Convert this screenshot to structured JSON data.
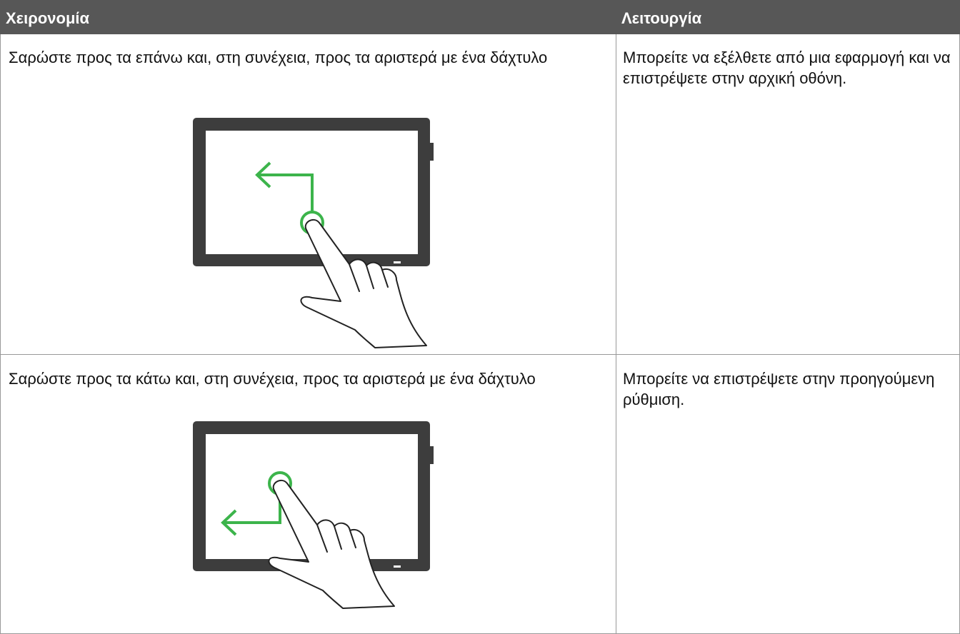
{
  "header": {
    "cells": [
      "Χειρονομία",
      "Λειτουργία"
    ]
  },
  "table": {
    "rows": [
      [
        "Σαρώστε προς τα επάνω και, στη συνέχεια, προς τα αριστερά με ένα δάχτυλο",
        "Μπορείτε να εξέλθετε από μια εφαρμογή και να επιστρέψετε στην αρχική οθόνη."
      ],
      [
        "Σαρώστε προς τα κάτω και, στη συνέχεια, προς τα αριστερά με ένα δάχτυλο",
        "Μπορείτε να επιστρέψετε στην προηγούμενη ρύθμιση."
      ]
    ]
  }
}
